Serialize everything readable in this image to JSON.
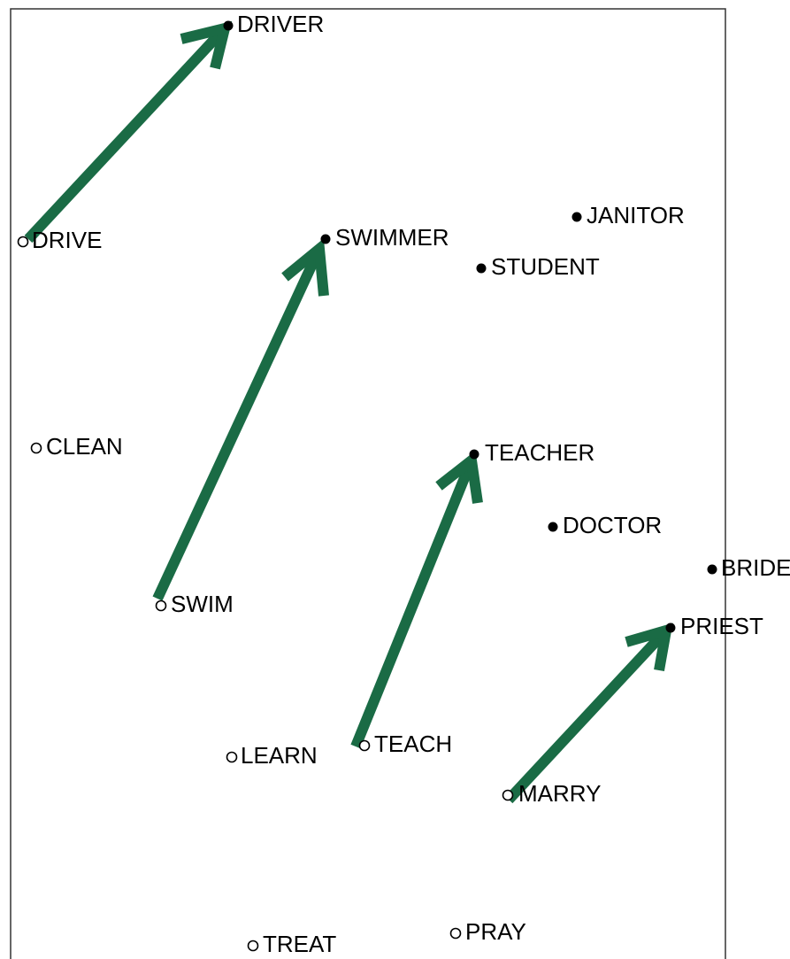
{
  "nodes": [
    {
      "label": "DRIVER"
    },
    {
      "label": "DRIVE"
    },
    {
      "label": "SWIMMER"
    },
    {
      "label": "JANITOR"
    },
    {
      "label": "STUDENT"
    },
    {
      "label": "CLEAN"
    },
    {
      "label": "TEACHER"
    },
    {
      "label": "DOCTOR"
    },
    {
      "label": "BRIDE"
    },
    {
      "label": "SWIM"
    },
    {
      "label": "PRIEST"
    },
    {
      "label": "LEARN"
    },
    {
      "label": "TEACH"
    },
    {
      "label": "MARRY"
    },
    {
      "label": "PRAY"
    },
    {
      "label": "TREAT"
    }
  ]
}
